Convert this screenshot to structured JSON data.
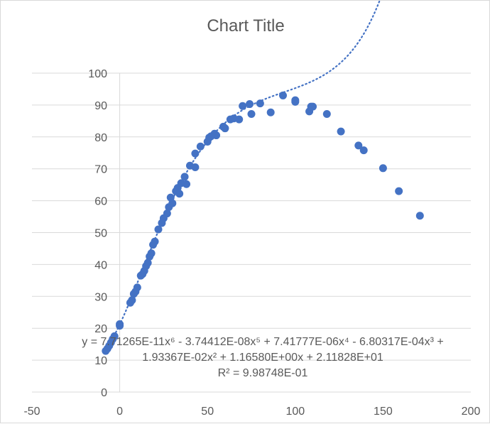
{
  "chart_data": {
    "type": "scatter",
    "title": "Chart Title",
    "xlabel": "",
    "ylabel": "",
    "xlim": [
      -50,
      200
    ],
    "ylim": [
      0,
      100
    ],
    "x_ticks": [
      "-50",
      "0",
      "50",
      "100",
      "150",
      "200"
    ],
    "y_ticks": [
      "0",
      "10",
      "20",
      "30",
      "40",
      "50",
      "60",
      "70",
      "80",
      "90",
      "100"
    ],
    "grid": "horizontal",
    "legend": "none",
    "marker_color": "#4472c4",
    "gridline_color": "#d9d9d9",
    "trendline": {
      "type": "polynomial",
      "order": 6,
      "style": "dotted",
      "coefficients": [
        7.71265e-11,
        -3.74412e-08,
        7.41777e-06,
        -0.000680317,
        0.0193367,
        1.1658,
        21.1828
      ],
      "equation_line1": "y = 7.71265E-11x⁶ - 3.74412E-08x⁵ + 7.41777E-06x⁴ - 6.80317E-04x³ +",
      "equation_line2": "1.93367E-02x² + 1.16580E+00x + 2.11828E+01",
      "r_squared": "R² = 9.98748E-01"
    },
    "points": [
      [
        -8,
        12.9
      ],
      [
        -7,
        13.6
      ],
      [
        -6,
        14.5
      ],
      [
        -5,
        15.5
      ],
      [
        -4,
        16.6
      ],
      [
        -3,
        17.5
      ],
      [
        0,
        20.8
      ],
      [
        0,
        21.3
      ],
      [
        6,
        28
      ],
      [
        7,
        28.8
      ],
      [
        8,
        30.8
      ],
      [
        9,
        31.5
      ],
      [
        10,
        32.8
      ],
      [
        12,
        36.5
      ],
      [
        13,
        37
      ],
      [
        14,
        38
      ],
      [
        15,
        39.5
      ],
      [
        16,
        40.5
      ],
      [
        17,
        42.5
      ],
      [
        18,
        43.5
      ],
      [
        19,
        46.2
      ],
      [
        20,
        47.2
      ],
      [
        22,
        51
      ],
      [
        24,
        53
      ],
      [
        25,
        54.5
      ],
      [
        27,
        56
      ],
      [
        28,
        58
      ],
      [
        29,
        61
      ],
      [
        30,
        59.2
      ],
      [
        32,
        63
      ],
      [
        33,
        64
      ],
      [
        34,
        62.2
      ],
      [
        35,
        65.5
      ],
      [
        37,
        67.5
      ],
      [
        38,
        65.2
      ],
      [
        40,
        71
      ],
      [
        43,
        70.5
      ],
      [
        43,
        74.8
      ],
      [
        46,
        77
      ],
      [
        50,
        78.5
      ],
      [
        51,
        79.8
      ],
      [
        52,
        80.2
      ],
      [
        54,
        81
      ],
      [
        55,
        80.5
      ],
      [
        59,
        83.2
      ],
      [
        60,
        82.7
      ],
      [
        63,
        85.5
      ],
      [
        65,
        85.8
      ],
      [
        68,
        85.5
      ],
      [
        70,
        89.7
      ],
      [
        74,
        90.3
      ],
      [
        75,
        87.2
      ],
      [
        80,
        90.5
      ],
      [
        86,
        87.7
      ],
      [
        93,
        93
      ],
      [
        100,
        91
      ],
      [
        100,
        91.5
      ],
      [
        108,
        88
      ],
      [
        109,
        89.5
      ],
      [
        110,
        89.5
      ],
      [
        118,
        87.2
      ],
      [
        126,
        81.7
      ],
      [
        136,
        77.3
      ],
      [
        139,
        75.8
      ],
      [
        150,
        70.2
      ],
      [
        159,
        63
      ],
      [
        171,
        55.3
      ]
    ]
  }
}
